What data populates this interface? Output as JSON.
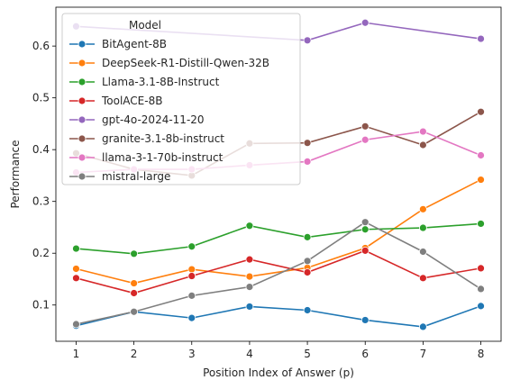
{
  "chart_data": {
    "type": "line",
    "title": "",
    "xlabel": "Position Index of Answer (p)",
    "ylabel": "Performance",
    "x": [
      1,
      2,
      3,
      4,
      5,
      6,
      7,
      8
    ],
    "xlim": [
      0.65,
      8.35
    ],
    "ylim": [
      0.03,
      0.675
    ],
    "yticks": [
      0.1,
      0.2,
      0.3,
      0.4,
      0.5,
      0.6
    ],
    "yticklabels": [
      "0.1",
      "0.2",
      "0.3",
      "0.4",
      "0.5",
      "0.6"
    ],
    "xticks": [
      1,
      2,
      3,
      4,
      5,
      6,
      7,
      8
    ],
    "xticklabels": [
      "1",
      "2",
      "3",
      "4",
      "5",
      "6",
      "7",
      "8"
    ],
    "grid": false,
    "legend": {
      "title": "Model",
      "placement": "top-left"
    },
    "series": [
      {
        "name": "BitAgent-8B",
        "color": "#1f77b4",
        "values": [
          0.06,
          0.087,
          0.075,
          0.097,
          0.09,
          0.071,
          0.058,
          0.098
        ]
      },
      {
        "name": "DeepSeek-R1-Distill-Qwen-32B",
        "color": "#ff7f0e",
        "values": [
          0.17,
          0.142,
          0.169,
          0.155,
          0.172,
          0.21,
          0.285,
          0.342
        ]
      },
      {
        "name": "Llama-3.1-8B-Instruct",
        "color": "#2ca02c",
        "values": [
          0.209,
          0.199,
          0.213,
          0.253,
          0.231,
          0.246,
          0.249,
          0.257
        ]
      },
      {
        "name": "ToolACE-8B",
        "color": "#d62728",
        "values": [
          0.152,
          0.123,
          0.156,
          0.188,
          0.163,
          0.205,
          0.152,
          0.171
        ]
      },
      {
        "name": "gpt-4o-2024-11-20",
        "color": "#9467bd",
        "values": [
          0.638,
          null,
          null,
          null,
          0.611,
          0.645,
          null,
          0.614
        ]
      },
      {
        "name": "granite-3.1-8b-instruct",
        "color": "#8c564b",
        "values": [
          0.393,
          0.362,
          0.35,
          0.412,
          0.413,
          0.445,
          0.409,
          0.473
        ]
      },
      {
        "name": "llama-3-1-70b-instruct",
        "color": "#e377c2",
        "values": [
          0.356,
          0.362,
          0.362,
          0.37,
          0.377,
          0.419,
          0.435,
          0.389
        ]
      },
      {
        "name": "mistral-large",
        "color": "#7f7f7f",
        "values": [
          0.063,
          0.087,
          0.118,
          0.135,
          0.185,
          0.26,
          0.203,
          0.131
        ]
      }
    ]
  }
}
